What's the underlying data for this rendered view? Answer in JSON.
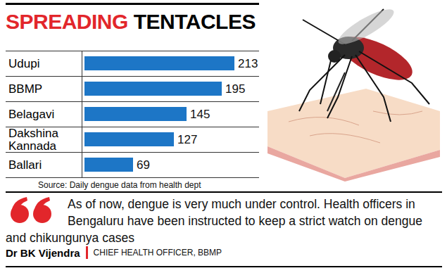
{
  "chart_data": {
    "type": "bar",
    "orientation": "horizontal",
    "title": "SPREADING TENTACLES",
    "categories": [
      "Udupi",
      "BBMP",
      "Belagavi",
      "Dakshina Kannada",
      "Ballari"
    ],
    "values": [
      213,
      195,
      145,
      127,
      69
    ],
    "color": "#1d76c6",
    "xlim": [
      0,
      213
    ],
    "data_labels": true,
    "tick_labels": "y",
    "grid": false,
    "source": "Source: Daily dengue data from health dept"
  },
  "quote": {
    "text": "As of now, dengue is very much under control. Health officers in Bengaluru have been instructed to keep a strict watch on dengue and chikungunya cases",
    "name": "Dr BK Vijendra",
    "role": "CHIEF HEALTH OFFICER, BBMP"
  }
}
